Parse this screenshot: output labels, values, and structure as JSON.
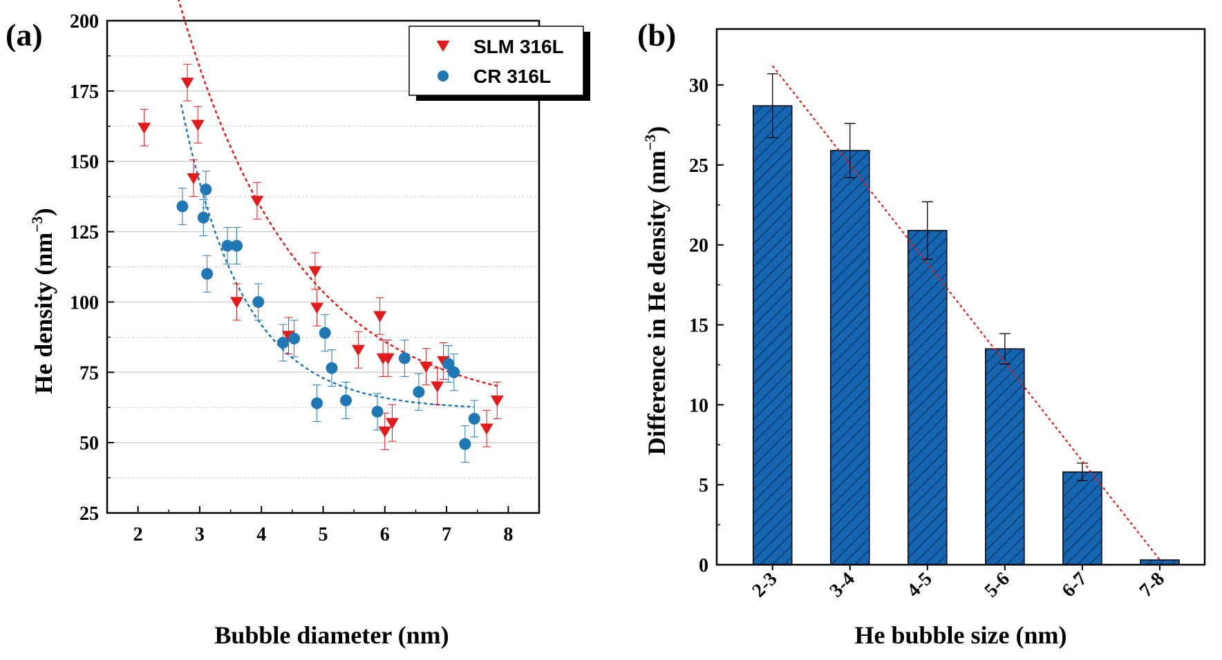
{
  "colors": {
    "slm": "#e31a1c",
    "cr": "#1f77b4",
    "bar_fill": "#1565b0",
    "grid": "#c8c8c8",
    "trend_bar": "#e31a1c"
  },
  "chart_data": [
    {
      "type": "scatter",
      "panel_label": "(a)",
      "xlabel": "Bubble diameter (nm)",
      "ylabel_main": "He density (nm",
      "ylabel_sup": "−3",
      "ylabel_close": ")",
      "xlim": [
        1.5,
        8.5
      ],
      "ylim": [
        25,
        200
      ],
      "x_ticks": [
        2,
        3,
        4,
        5,
        6,
        7,
        8
      ],
      "x_tick_labels": [
        "2",
        "3",
        "4",
        "5",
        "6",
        "7",
        "8"
      ],
      "y_ticks": [
        25,
        50,
        75,
        100,
        125,
        150,
        175,
        200
      ],
      "y_tick_labels": [
        "25",
        "50",
        "75",
        "100",
        "125",
        "150",
        "175",
        "200"
      ],
      "grid": true,
      "legend_position": "top-right",
      "series": [
        {
          "name": "SLM 316L",
          "marker": "triangle-down",
          "points": [
            {
              "x": 2.1,
              "y": 162,
              "err": 6.5
            },
            {
              "x": 2.8,
              "y": 178,
              "err": 6.5
            },
            {
              "x": 2.9,
              "y": 144,
              "err": 6.5
            },
            {
              "x": 2.97,
              "y": 163,
              "err": 6.5
            },
            {
              "x": 3.6,
              "y": 100,
              "err": 6.5
            },
            {
              "x": 3.93,
              "y": 136,
              "err": 6.5
            },
            {
              "x": 4.44,
              "y": 88,
              "err": 6.5
            },
            {
              "x": 4.87,
              "y": 111,
              "err": 6.5
            },
            {
              "x": 4.9,
              "y": 98,
              "err": 6.5
            },
            {
              "x": 5.57,
              "y": 83,
              "err": 6.5
            },
            {
              "x": 5.92,
              "y": 95,
              "err": 6.5
            },
            {
              "x": 5.97,
              "y": 80,
              "err": 6.5
            },
            {
              "x": 6.0,
              "y": 54,
              "err": 6.5
            },
            {
              "x": 6.05,
              "y": 80,
              "err": 6.5
            },
            {
              "x": 6.12,
              "y": 57,
              "err": 6.5
            },
            {
              "x": 6.67,
              "y": 77,
              "err": 6.5
            },
            {
              "x": 6.85,
              "y": 70,
              "err": 6.5
            },
            {
              "x": 6.95,
              "y": 79,
              "err": 6.5
            },
            {
              "x": 7.65,
              "y": 55,
              "err": 6.5
            },
            {
              "x": 7.82,
              "y": 65,
              "err": 6.5
            }
          ],
          "fit": {
            "type": "exponential",
            "a": 60.2,
            "b": 207.7,
            "c": 0.522,
            "x0": 2.0,
            "x_range": [
              2.1,
              7.82
            ]
          }
        },
        {
          "name": "CR 316L",
          "marker": "circle",
          "points": [
            {
              "x": 2.72,
              "y": 134,
              "err": 6.5
            },
            {
              "x": 3.06,
              "y": 130,
              "err": 6.5
            },
            {
              "x": 3.1,
              "y": 140,
              "err": 6.5
            },
            {
              "x": 3.12,
              "y": 110,
              "err": 6.5
            },
            {
              "x": 3.45,
              "y": 120,
              "err": 6.5
            },
            {
              "x": 3.6,
              "y": 120,
              "err": 6.5
            },
            {
              "x": 3.95,
              "y": 100,
              "err": 6.5
            },
            {
              "x": 4.35,
              "y": 85.5,
              "err": 6.5
            },
            {
              "x": 4.53,
              "y": 87,
              "err": 6.5
            },
            {
              "x": 4.9,
              "y": 64,
              "err": 6.5
            },
            {
              "x": 5.03,
              "y": 89,
              "err": 6.5
            },
            {
              "x": 5.14,
              "y": 76.5,
              "err": 6.5
            },
            {
              "x": 5.37,
              "y": 65,
              "err": 6.5
            },
            {
              "x": 5.88,
              "y": 61,
              "err": 6.5
            },
            {
              "x": 6.32,
              "y": 80,
              "err": 6.5
            },
            {
              "x": 6.55,
              "y": 68,
              "err": 6.5
            },
            {
              "x": 7.03,
              "y": 78,
              "err": 6.5
            },
            {
              "x": 7.12,
              "y": 75,
              "err": 6.5
            },
            {
              "x": 7.3,
              "y": 49.5,
              "err": 6.5
            },
            {
              "x": 7.45,
              "y": 58.5,
              "err": 6.5
            }
          ],
          "fit": {
            "type": "exponential",
            "a": 61.7,
            "b": 132.2,
            "c": 0.985,
            "x0": 2.5,
            "x_range": [
              2.7,
              7.45
            ]
          }
        }
      ]
    },
    {
      "type": "bar",
      "panel_label": "(b)",
      "xlabel": "He bubble size (nm)",
      "ylabel_main": "Difference in He density (nm",
      "ylabel_sup": "−3",
      "ylabel_close": ")",
      "categories": [
        "2-3",
        "3-4",
        "4-5",
        "5-6",
        "6-7",
        "7-8"
      ],
      "values": [
        28.7,
        25.9,
        20.9,
        13.5,
        5.8,
        0.3
      ],
      "errors": [
        2.0,
        1.7,
        1.8,
        0.95,
        0.55,
        0
      ],
      "ylim": [
        0,
        33.5
      ],
      "y_ticks": [
        0,
        5,
        10,
        15,
        20,
        25,
        30
      ],
      "y_tick_labels": [
        "0",
        "5",
        "10",
        "15",
        "20",
        "25",
        "30"
      ],
      "hatch": "diagonal",
      "trend_line": {
        "from_category": 0,
        "from_value": 31.2,
        "to_category": 5,
        "to_value": 0.3
      }
    }
  ]
}
